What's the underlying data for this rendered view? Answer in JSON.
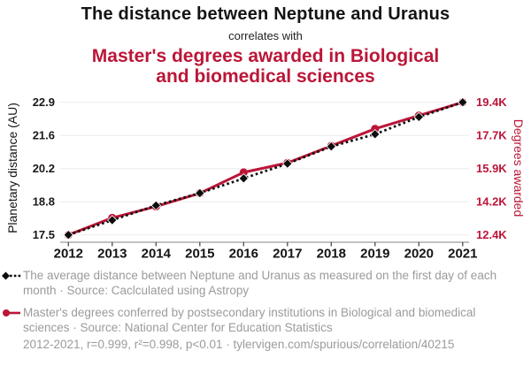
{
  "header": {
    "title": "The distance between Neptune and Uranus",
    "subtitle": "correlates with",
    "red_title_lines": [
      "Master's degrees awarded in Biological",
      "and biomedical sciences"
    ]
  },
  "chart_data": {
    "type": "line",
    "x": [
      2012,
      2013,
      2014,
      2015,
      2016,
      2017,
      2018,
      2019,
      2020,
      2021
    ],
    "x_tick_labels": [
      "2012",
      "2013",
      "2014",
      "2015",
      "2016",
      "2017",
      "2018",
      "2019",
      "2020",
      "2021"
    ],
    "series": [
      {
        "name": "The average distance between Neptune and Uranus",
        "axis": "left",
        "line_style": "dashed",
        "marker": "diamond",
        "color": "#0d0d0d",
        "values": [
          17.5,
          18.1,
          18.7,
          19.2,
          19.8,
          20.4,
          21.1,
          21.6,
          22.3,
          22.9
        ]
      },
      {
        "name": "Master's degrees awarded in Biological and biomedical sciences",
        "axis": "right",
        "line_style": "solid",
        "marker": "circle",
        "color": "#bb1638",
        "values": [
          12400,
          13300,
          13900,
          14600,
          15700,
          16200,
          17100,
          18000,
          18700,
          19400
        ]
      }
    ],
    "left_axis": {
      "label": "Planetary distance (AU)",
      "min": 17.5,
      "max": 22.9,
      "tick_labels_top_to_bottom": [
        "22.9",
        "21.6",
        "20.2",
        "18.8",
        "17.5"
      ]
    },
    "right_axis": {
      "label": "Degrees awarded",
      "min": 12400,
      "max": 19400,
      "tick_labels_top_to_bottom": [
        "19.4K",
        "17.7K",
        "15.9K",
        "14.2K",
        "12.4K"
      ]
    },
    "grid": true,
    "legend_position": "bottom"
  },
  "legend": {
    "item1": "The average distance between Neptune and Uranus as measured on the first day of each month · Source: Caclculated using Astropy",
    "item2": "Master's degrees conferred by postsecondary institutions in Biological and biomedical sciences · Source: National Center for Education Statistics",
    "stats": "2012-2021, r=0.999, r²=0.998, p<0.01 · tylervigen.com/spurious/correlation/40215"
  },
  "colors": {
    "accent_red": "#bb1638",
    "series_black": "#0d0d0d",
    "legend_gray": "#9b9b9b",
    "gridline": "#ebebeb",
    "axis_line": "#9c9c9c"
  }
}
